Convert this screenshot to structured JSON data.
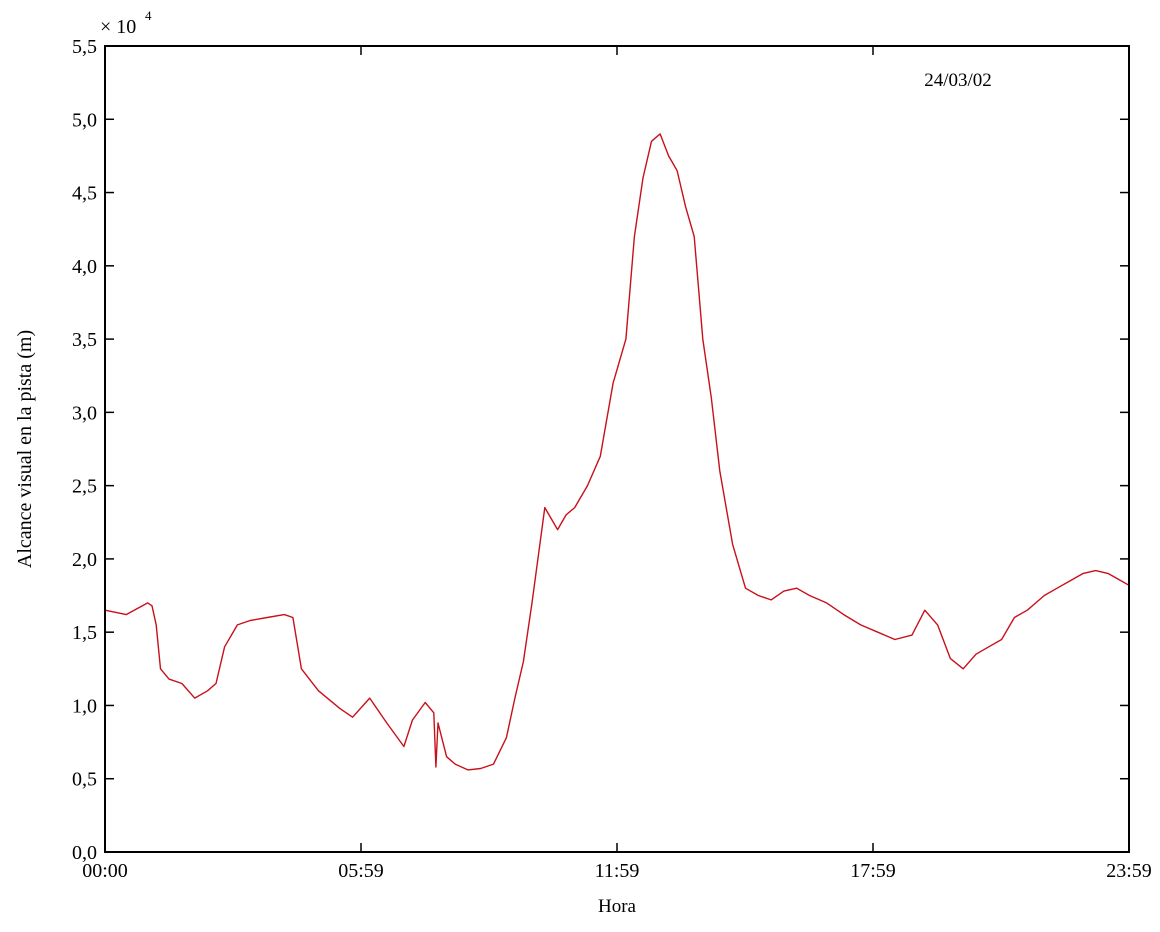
{
  "chart_data": {
    "type": "line",
    "annotation": "24/03/02",
    "xlabel": "Hora",
    "ylabel": "Alcance visual en la pista (m)",
    "y_multiplier_label": "× 10",
    "y_multiplier_exp": "4",
    "x_ticks": [
      "00:00",
      "05:59",
      "11:59",
      "17:59",
      "23:59"
    ],
    "y_ticks": [
      "0,0",
      "0,5",
      "1,0",
      "1,5",
      "2,0",
      "2,5",
      "3,0",
      "3,5",
      "4,0",
      "4,5",
      "5,0",
      "5,5"
    ],
    "xlim_hours": [
      0,
      23.983
    ],
    "ylim": [
      0,
      5.5
    ],
    "grid": false,
    "series": [
      {
        "color": "#c8101a",
        "x_hours": [
          0,
          0.5,
          1.0,
          1.1,
          1.2,
          1.3,
          1.5,
          1.8,
          2.1,
          2.4,
          2.6,
          2.8,
          3.1,
          3.4,
          3.8,
          4.2,
          4.4,
          4.6,
          5.0,
          5.5,
          5.8,
          6.2,
          6.6,
          7.0,
          7.2,
          7.5,
          7.7,
          7.75,
          7.8,
          8.0,
          8.2,
          8.5,
          8.8,
          9.1,
          9.4,
          9.6,
          9.8,
          10.0,
          10.3,
          10.6,
          10.8,
          11.0,
          11.3,
          11.6,
          11.9,
          12.2,
          12.4,
          12.6,
          12.8,
          13.0,
          13.2,
          13.4,
          13.6,
          13.8,
          14.0,
          14.2,
          14.4,
          14.7,
          15.0,
          15.3,
          15.6,
          15.9,
          16.2,
          16.5,
          16.9,
          17.3,
          17.7,
          18.1,
          18.5,
          18.9,
          19.2,
          19.5,
          19.8,
          20.1,
          20.4,
          20.7,
          21.0,
          21.3,
          21.6,
          21.8,
          22.0,
          22.3,
          22.6,
          22.9,
          23.2,
          23.5,
          23.8,
          23.983
        ],
        "y_x1e4": [
          1.65,
          1.62,
          1.7,
          1.68,
          1.55,
          1.25,
          1.18,
          1.15,
          1.05,
          1.1,
          1.15,
          1.4,
          1.55,
          1.58,
          1.6,
          1.62,
          1.6,
          1.25,
          1.1,
          0.98,
          0.92,
          1.05,
          0.88,
          0.72,
          0.9,
          1.02,
          0.95,
          0.58,
          0.88,
          0.65,
          0.6,
          0.56,
          0.57,
          0.6,
          0.78,
          1.05,
          1.3,
          1.7,
          2.35,
          2.2,
          2.3,
          2.35,
          2.5,
          2.7,
          3.2,
          3.5,
          4.2,
          4.6,
          4.85,
          4.9,
          4.75,
          4.65,
          4.4,
          4.2,
          3.5,
          3.1,
          2.6,
          2.1,
          1.8,
          1.75,
          1.72,
          1.78,
          1.8,
          1.75,
          1.7,
          1.62,
          1.55,
          1.5,
          1.45,
          1.48,
          1.65,
          1.55,
          1.32,
          1.25,
          1.35,
          1.4,
          1.45,
          1.6,
          1.65,
          1.7,
          1.75,
          1.8,
          1.85,
          1.9,
          1.92,
          1.9,
          1.85,
          1.82
        ]
      }
    ]
  }
}
